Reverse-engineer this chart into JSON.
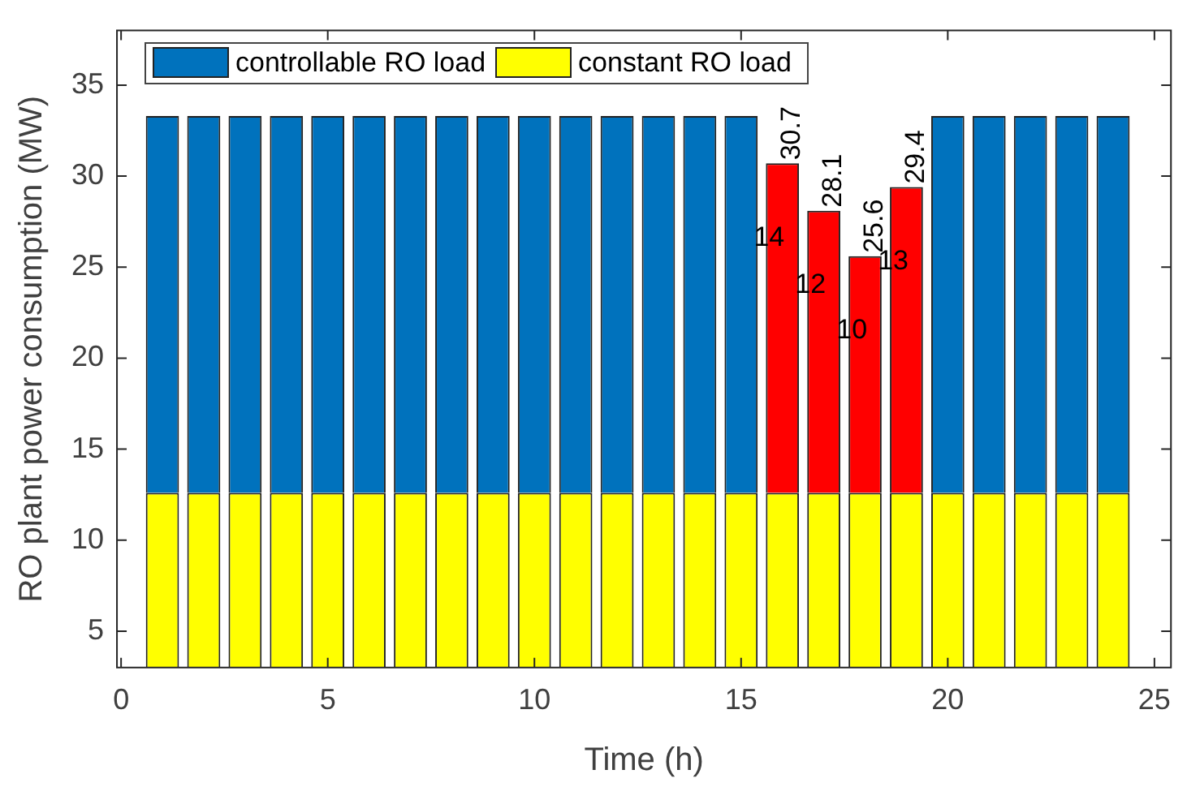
{
  "chart_data": {
    "type": "bar",
    "stacked": true,
    "xlabel": "Time (h)",
    "ylabel": "RO plant power consumption (MW)",
    "x": [
      1,
      2,
      3,
      4,
      5,
      6,
      7,
      8,
      9,
      10,
      11,
      12,
      13,
      14,
      15,
      16,
      17,
      18,
      19,
      20,
      21,
      22,
      23,
      24
    ],
    "series": [
      {
        "name": "constant RO load",
        "color": "#ffff00",
        "values": [
          12.6,
          12.6,
          12.6,
          12.6,
          12.6,
          12.6,
          12.6,
          12.6,
          12.6,
          12.6,
          12.6,
          12.6,
          12.6,
          12.6,
          12.6,
          12.6,
          12.6,
          12.6,
          12.6,
          12.6,
          12.6,
          12.6,
          12.6,
          12.6
        ]
      },
      {
        "name": "controllable RO load",
        "color": "#0072bd",
        "values": [
          20.7,
          20.7,
          20.7,
          20.7,
          20.7,
          20.7,
          20.7,
          20.7,
          20.7,
          20.7,
          20.7,
          20.7,
          20.7,
          20.7,
          20.7,
          null,
          null,
          null,
          null,
          20.7,
          20.7,
          20.7,
          20.7,
          20.7
        ]
      },
      {
        "color": "#ff0000",
        "values": [
          null,
          null,
          null,
          null,
          null,
          null,
          null,
          null,
          null,
          null,
          null,
          null,
          null,
          null,
          null,
          18.1,
          15.5,
          13.0,
          16.8,
          null,
          null,
          null,
          null,
          null
        ]
      }
    ],
    "totals": [
      null,
      null,
      null,
      null,
      null,
      null,
      null,
      null,
      null,
      null,
      null,
      null,
      null,
      null,
      null,
      "30.7",
      "28.1",
      "25.6",
      "29.4",
      null,
      null,
      null,
      null,
      null
    ],
    "annotations": [
      "14",
      "12",
      "10",
      "13"
    ],
    "xlim": [
      -0.1,
      25.4
    ],
    "xticks": [
      0,
      5,
      10,
      15,
      20,
      25
    ],
    "ylim": [
      3,
      38
    ],
    "yticks": [
      5,
      10,
      15,
      20,
      25,
      30,
      35
    ],
    "grid": false,
    "legend": "top left"
  }
}
